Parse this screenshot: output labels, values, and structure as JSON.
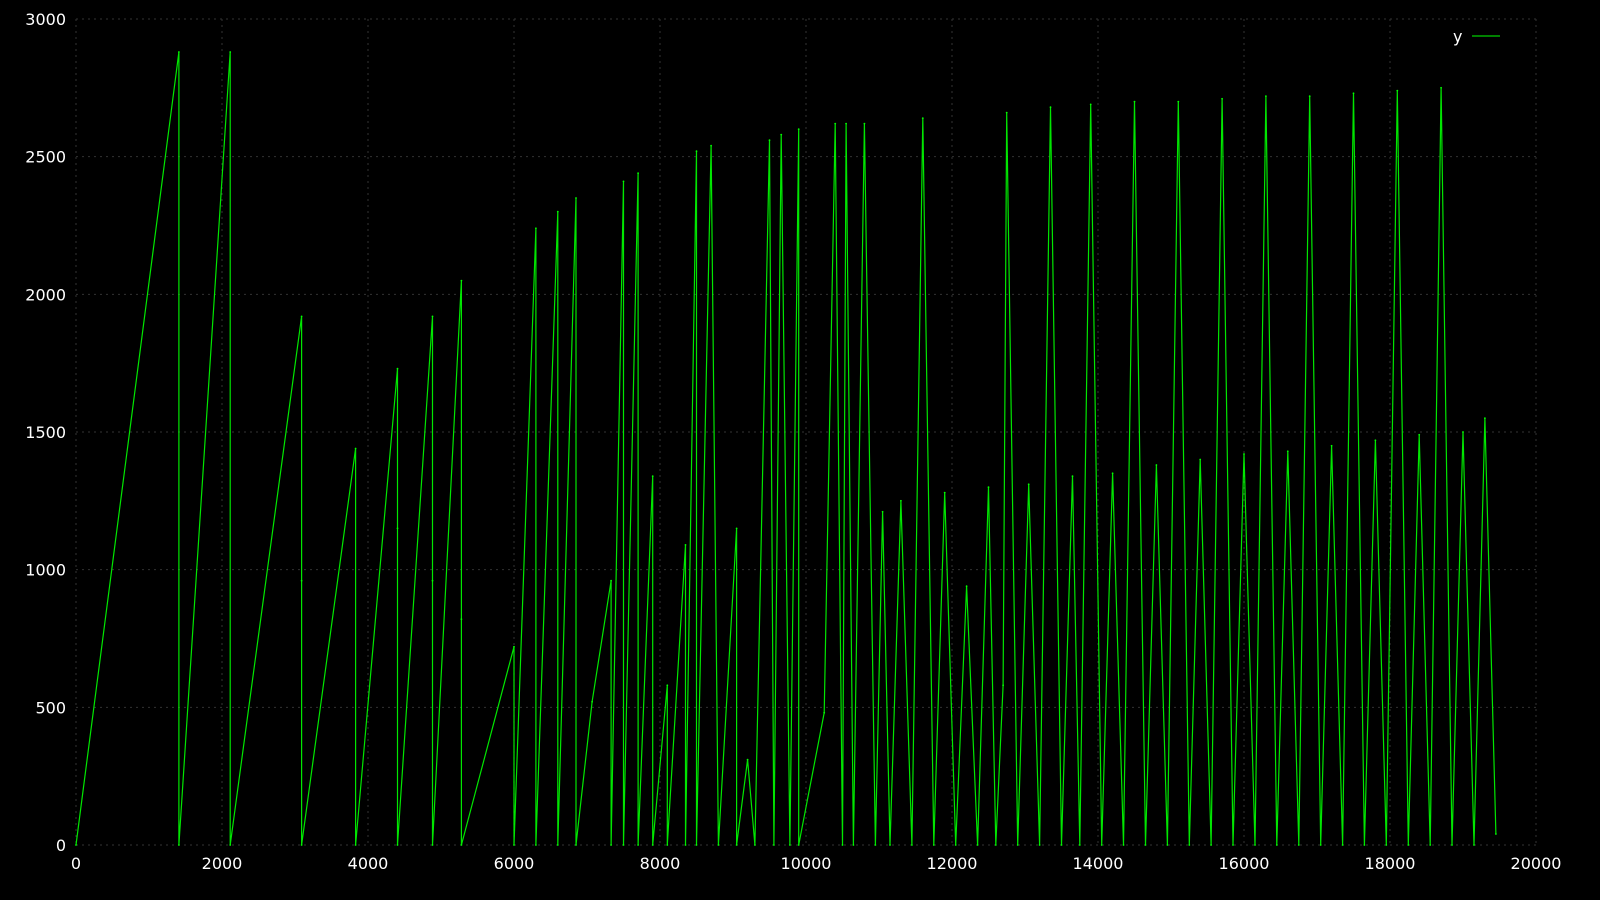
{
  "chart_data": {
    "type": "line",
    "title": "",
    "xlabel": "",
    "ylabel": "",
    "xlim": [
      0,
      20000
    ],
    "ylim": [
      0,
      3000
    ],
    "grid": true,
    "legend": {
      "position": "top-right",
      "entries": [
        "y"
      ]
    },
    "x_ticks": [
      "0",
      "2000",
      "4000",
      "6000",
      "8000",
      "10000",
      "12000",
      "14000",
      "16000",
      "18000",
      "20000"
    ],
    "y_ticks": [
      "0",
      "500",
      "1000",
      "1500",
      "2000",
      "2500",
      "3000"
    ],
    "colors": {
      "background": "#000000",
      "series": "#00ff00",
      "text": "#ffffff",
      "grid": "#333333"
    },
    "series": [
      {
        "name": "y",
        "x": [
          0,
          1410,
          1410,
          2112,
          2112,
          3090,
          3090,
          3090,
          3830,
          3830,
          4404,
          4404,
          4404,
          4884,
          4884,
          4884,
          5280,
          5280,
          5280,
          6000,
          6000,
          6300,
          6300,
          6600,
          6600,
          6850,
          6850,
          7070,
          7330,
          7330,
          7500,
          7500,
          7700,
          7700,
          7900,
          7900,
          8100,
          8100,
          8350,
          8350,
          8500,
          8500,
          8700,
          8800,
          9050,
          9050,
          9200,
          9300,
          9500,
          9560,
          9660,
          9780,
          9900,
          9900,
          10250,
          10400,
          10500,
          10550,
          10650,
          10800,
          10950,
          11050,
          11150,
          11300,
          11450,
          11600,
          11750,
          11900,
          12050,
          12200,
          12350,
          12500,
          12600,
          12700,
          12750,
          12900,
          13050,
          13200,
          13350,
          13500,
          13650,
          13750,
          13900,
          14050,
          14200,
          14350,
          14500,
          14650,
          14800,
          14950,
          15100,
          15250,
          15400,
          15550,
          15700,
          15850,
          16000,
          16150,
          16300,
          16450,
          16600,
          16750,
          16900,
          17050,
          17200,
          17350,
          17500,
          17650,
          17800,
          17950,
          18100,
          18250,
          18400,
          18550,
          18700,
          18850,
          19000,
          19150,
          19300,
          19450
        ],
        "y": [
          0,
          2880,
          0,
          2880,
          0,
          1920,
          960,
          0,
          1440,
          0,
          1730,
          1150,
          0,
          1920,
          960,
          0,
          2050,
          820,
          0,
          720,
          0,
          2240,
          0,
          2300,
          0,
          2350,
          0,
          520,
          960,
          0,
          2410,
          0,
          2440,
          0,
          1340,
          0,
          580,
          0,
          1090,
          0,
          2520,
          0,
          2540,
          0,
          1150,
          0,
          310,
          0,
          2560,
          0,
          2580,
          0,
          2600,
          0,
          480,
          2620,
          0,
          2620,
          0,
          2620,
          0,
          1210,
          0,
          1250,
          0,
          2640,
          0,
          1280,
          0,
          940,
          0,
          1300,
          0,
          580,
          2660,
          0,
          1310,
          0,
          2680,
          0,
          1340,
          0,
          2690,
          0,
          1350,
          0,
          2700,
          0,
          1380,
          0,
          2700,
          0,
          1400,
          0,
          2710,
          0,
          1420,
          0,
          2720,
          0,
          1430,
          0,
          2720,
          0,
          1450,
          0,
          2730,
          0,
          1470,
          0,
          2740,
          0,
          1490,
          0,
          2750,
          0,
          1500,
          0,
          1550,
          40
        ]
      }
    ]
  }
}
